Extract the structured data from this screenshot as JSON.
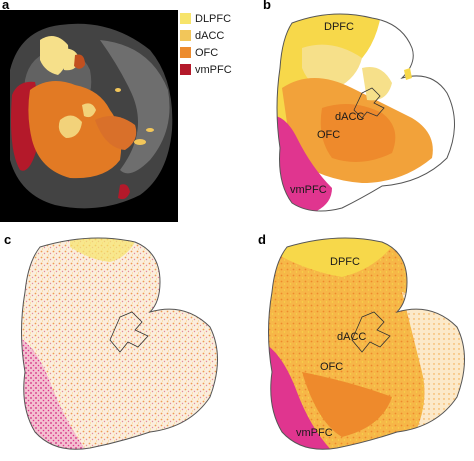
{
  "panels": {
    "a": "a",
    "b": "b",
    "c": "c",
    "d": "d"
  },
  "legend": [
    {
      "label": "DLPFC",
      "color": "#f7e46b"
    },
    {
      "label": "dACC",
      "color": "#f2c65a"
    },
    {
      "label": "OFC",
      "color": "#ec8b2e"
    },
    {
      "label": "vmPFC",
      "color": "#b4192a"
    }
  ],
  "panel_b_labels": {
    "dpfc": "DPFC",
    "dacc": "dACC",
    "ofc": "OFC",
    "vmpfc": "vmPFC"
  },
  "panel_d_labels": {
    "dpfc": "DPFC",
    "dacc": "dACC",
    "ofc": "OFC",
    "vmpfc": "vmPFC"
  },
  "colors": {
    "dpfc_yellow": "#f7d84a",
    "pale_yellow": "#f6e08a",
    "orange": "#f2a23a",
    "deep_orange": "#ee8a2c",
    "magenta": "#e0358f",
    "outline": "#555555"
  }
}
